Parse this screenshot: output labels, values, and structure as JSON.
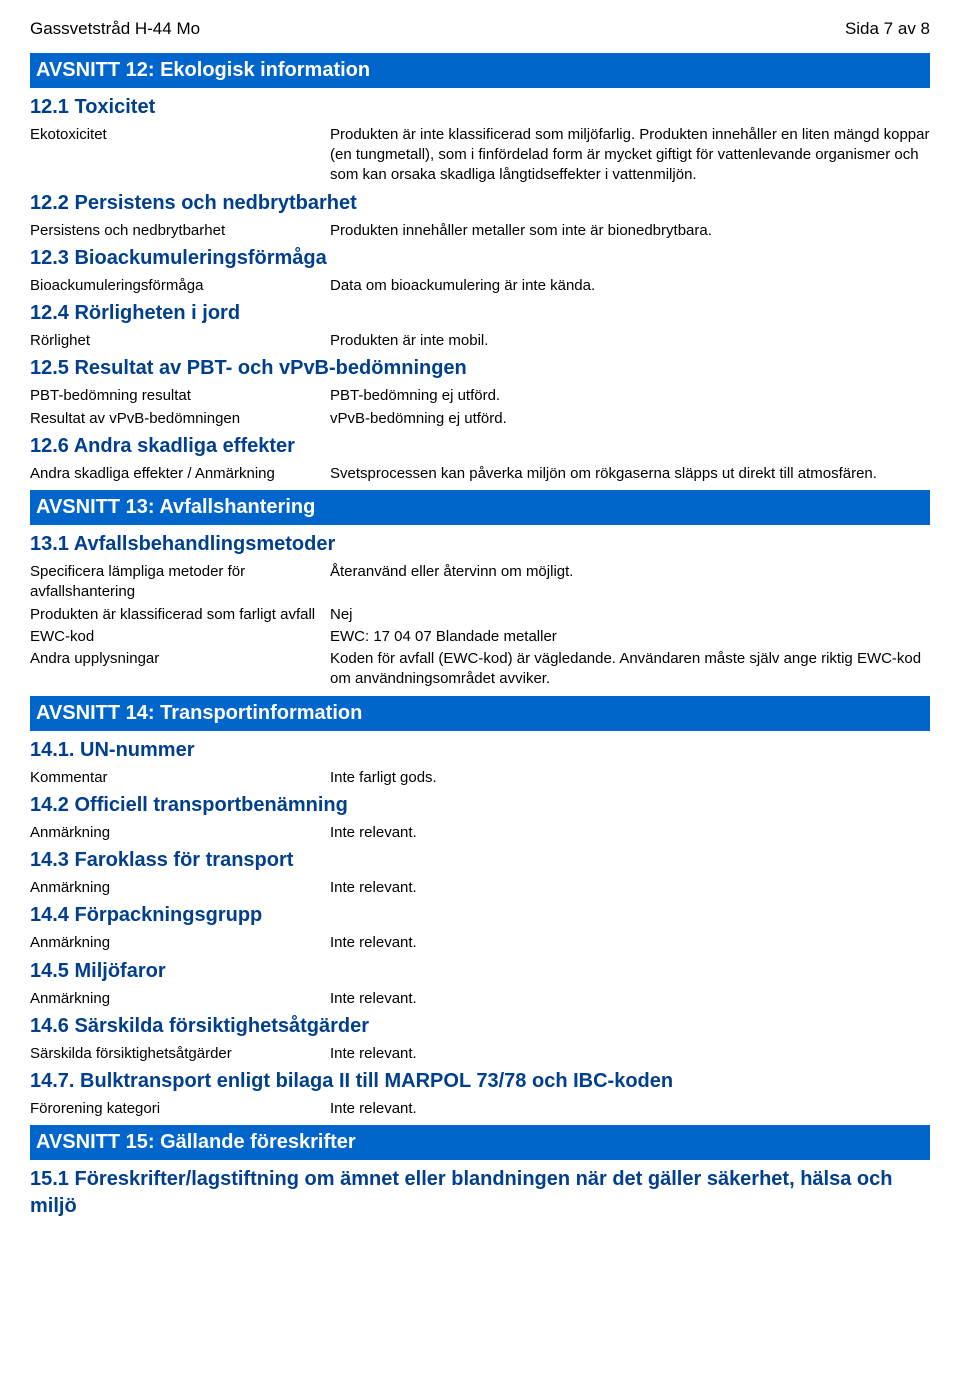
{
  "header": {
    "left": "Gassvetstråd H-44 Mo",
    "right": "Sida 7 av 8"
  },
  "s12": {
    "title": "AVSNITT 12: Ekologisk information",
    "s1": {
      "heading": "12.1 Toxicitet",
      "rows": [
        {
          "label": "Ekotoxicitet",
          "value": "Produkten är inte klassificerad som miljöfarlig.\nProdukten innehåller en liten mängd koppar (en tungmetall), som i finfördelad form är mycket giftigt för vattenlevande organismer och som kan orsaka skadliga långtidseffekter i vattenmiljön."
        }
      ]
    },
    "s2": {
      "heading": "12.2 Persistens och nedbrytbarhet",
      "rows": [
        {
          "label": "Persistens och nedbrytbarhet",
          "value": "Produkten innehåller metaller som inte är bionedbrytbara."
        }
      ]
    },
    "s3": {
      "heading": "12.3 Bioackumuleringsförmåga",
      "rows": [
        {
          "label": "Bioackumuleringsförmåga",
          "value": "Data om bioackumulering är inte kända."
        }
      ]
    },
    "s4": {
      "heading": "12.4 Rörligheten i jord",
      "rows": [
        {
          "label": "Rörlighet",
          "value": "Produkten är inte mobil."
        }
      ]
    },
    "s5": {
      "heading": "12.5 Resultat av PBT- och vPvB-bedömningen",
      "rows": [
        {
          "label": "PBT-bedömning resultat",
          "value": "PBT-bedömning ej utförd."
        },
        {
          "label": "Resultat av vPvB-bedömningen",
          "value": "vPvB-bedömning ej utförd."
        }
      ]
    },
    "s6": {
      "heading": "12.6 Andra skadliga effekter",
      "rows": [
        {
          "label": "Andra skadliga effekter / Anmärkning",
          "value": "Svetsprocessen kan påverka miljön om rökgaserna släpps ut direkt till atmosfären."
        }
      ]
    }
  },
  "s13": {
    "title": "AVSNITT 13: Avfallshantering",
    "s1": {
      "heading": "13.1 Avfallsbehandlingsmetoder",
      "rows": [
        {
          "label": "Specificera lämpliga metoder för avfallshantering",
          "value": "Återanvänd eller återvinn om möjligt."
        },
        {
          "label": "Produkten är klassificerad som farligt avfall",
          "value": "Nej"
        },
        {
          "label": "EWC-kod",
          "value": "EWC: 17 04 07 Blandade metaller"
        },
        {
          "label": "Andra upplysningar",
          "value": "Koden för avfall (EWC-kod) är vägledande. Användaren måste själv ange riktig EWC-kod om användningsområdet avviker."
        }
      ]
    }
  },
  "s14": {
    "title": "AVSNITT 14: Transportinformation",
    "s1": {
      "heading": "14.1. UN-nummer",
      "rows": [
        {
          "label": "Kommentar",
          "value": "Inte farligt gods."
        }
      ]
    },
    "s2": {
      "heading": "14.2 Officiell transportbenämning",
      "rows": [
        {
          "label": "Anmärkning",
          "value": "Inte relevant."
        }
      ]
    },
    "s3": {
      "heading": "14.3 Faroklass för transport",
      "rows": [
        {
          "label": "Anmärkning",
          "value": "Inte relevant."
        }
      ]
    },
    "s4": {
      "heading": "14.4 Förpackningsgrupp",
      "rows": [
        {
          "label": "Anmärkning",
          "value": "Inte relevant."
        }
      ]
    },
    "s5": {
      "heading": "14.5 Miljöfaror",
      "rows": [
        {
          "label": "Anmärkning",
          "value": "Inte relevant."
        }
      ]
    },
    "s6": {
      "heading": "14.6 Särskilda försiktighetsåtgärder",
      "rows": [
        {
          "label": "Särskilda försiktighetsåtgärder",
          "value": "Inte relevant."
        }
      ]
    },
    "s7": {
      "heading": "14.7. Bulktransport enligt bilaga II till MARPOL 73/78 och IBC-koden",
      "rows": [
        {
          "label": "Förorening kategori",
          "value": "Inte relevant."
        }
      ]
    }
  },
  "s15": {
    "title": "AVSNITT 15: Gällande föreskrifter",
    "s1": {
      "heading": "15.1 Föreskrifter/lagstiftning om ämnet eller blandningen när det gäller säkerhet, hälsa och miljö"
    }
  }
}
